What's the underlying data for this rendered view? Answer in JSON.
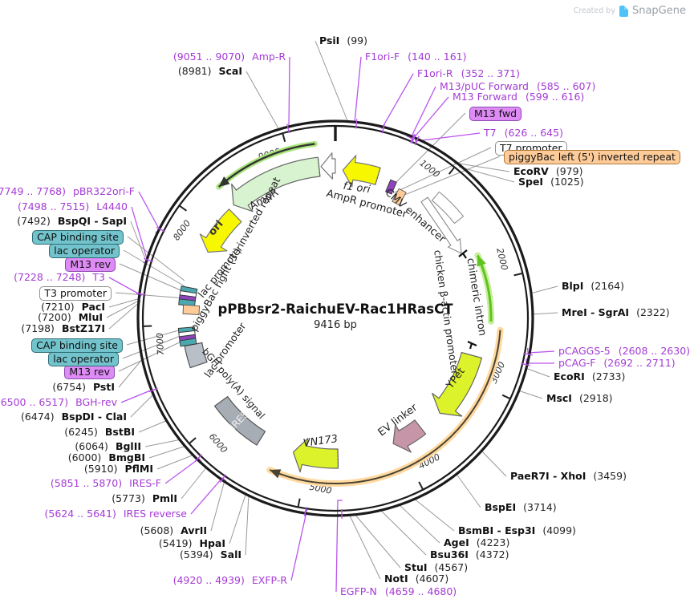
{
  "watermark": {
    "created_by": "Created by",
    "brand": "SnapGene"
  },
  "plasmid": {
    "name": "pPBbsr2-RaichuEV-Rac1HRasCT",
    "size": "9416 bp"
  },
  "ticks": [
    "1000",
    "2000",
    "3000",
    "4000",
    "5000",
    "6000",
    "7000",
    "8000",
    "9000"
  ],
  "feature_labels": {
    "f1ori": "f1 ori",
    "ampr_prom": "AmpR promoter",
    "ampr": "AmpR",
    "cmv": "CMV enhancer",
    "actin": "chicken β-actin promoter",
    "intron": "chimeric intron",
    "ypet": "YPet",
    "ev": "EV linker",
    "vn173": "VN173",
    "ires": "IRES",
    "bgh": "bGH poly(A) signal",
    "lac_a": "lac promoter",
    "lac_b": "lac promoter",
    "pb_right": "piggyBac right (3') inverted repeat",
    "ori": "ori"
  },
  "callouts": [
    {
      "id": "psiI",
      "kind": "enzyme",
      "name": "PsiI",
      "pos": "(99)"
    },
    {
      "id": "ampRp",
      "kind": "primer",
      "name": "Amp-R",
      "pos": "(9051 .. 9070)"
    },
    {
      "id": "scaI",
      "kind": "enzyme",
      "name": "ScaI",
      "pos": "(8981)"
    },
    {
      "id": "f1oriF",
      "kind": "primer",
      "name": "F1ori-F",
      "pos": "(140 .. 161)"
    },
    {
      "id": "f1oriR",
      "kind": "primer",
      "name": "F1ori-R",
      "pos": "(352 .. 371)"
    },
    {
      "id": "m13puc",
      "kind": "primer",
      "name": "M13/pUC Forward",
      "pos": "(585 .. 607)"
    },
    {
      "id": "m13fwdP",
      "kind": "primer",
      "name": "M13 Forward",
      "pos": "(599 .. 616)"
    },
    {
      "id": "m13fwdBox",
      "kind": "box",
      "box": "purple",
      "name": "M13 fwd"
    },
    {
      "id": "t7",
      "kind": "primer",
      "name": "T7",
      "pos": "(626 .. 645)"
    },
    {
      "id": "t7prom",
      "kind": "box",
      "box": "white",
      "name": "T7 promoter"
    },
    {
      "id": "pbLeft",
      "kind": "box",
      "box": "orange",
      "name": "piggyBac left (5') inverted repeat"
    },
    {
      "id": "ecoRV",
      "kind": "enzyme",
      "name": "EcoRV",
      "pos": "(979)"
    },
    {
      "id": "speI",
      "kind": "enzyme",
      "name": "SpeI",
      "pos": "(1025)"
    },
    {
      "id": "blpI",
      "kind": "enzyme",
      "name": "BlpI",
      "pos": "(2164)"
    },
    {
      "id": "mreI",
      "kind": "enzyme",
      "name": "MreI - SgrAI",
      "pos": "(2322)"
    },
    {
      "id": "pcaggs5",
      "kind": "primer",
      "name": "pCAGGS-5",
      "pos": "(2608 .. 2630)"
    },
    {
      "id": "pcagF",
      "kind": "primer",
      "name": "pCAG-F",
      "pos": "(2692 .. 2711)"
    },
    {
      "id": "ecoRI",
      "kind": "enzyme",
      "name": "EcoRI",
      "pos": "(2733)"
    },
    {
      "id": "mscI",
      "kind": "enzyme",
      "name": "MscI",
      "pos": "(2918)"
    },
    {
      "id": "paeR7I",
      "kind": "enzyme",
      "name": "PaeR7I - XhoI",
      "pos": "(3459)"
    },
    {
      "id": "bspEI",
      "kind": "enzyme",
      "name": "BspEI",
      "pos": "(3714)"
    },
    {
      "id": "bsmBI",
      "kind": "enzyme",
      "name": "BsmBI - Esp3I",
      "pos": "(4099)"
    },
    {
      "id": "ageI",
      "kind": "enzyme",
      "name": "AgeI",
      "pos": "(4223)"
    },
    {
      "id": "bsu36I",
      "kind": "enzyme",
      "name": "Bsu36I",
      "pos": "(4372)"
    },
    {
      "id": "stuI",
      "kind": "enzyme",
      "name": "StuI",
      "pos": "(4567)"
    },
    {
      "id": "notI",
      "kind": "enzyme",
      "name": "NotI",
      "pos": "(4607)"
    },
    {
      "id": "egfpN",
      "kind": "primer",
      "name": "EGFP-N",
      "pos": "(4659 .. 4680)"
    },
    {
      "id": "exfpR",
      "kind": "primer",
      "name": "EXFP-R",
      "pos": "(4920 .. 4939)"
    },
    {
      "id": "salI",
      "kind": "enzyme",
      "name": "SalI",
      "pos": "(5394)"
    },
    {
      "id": "hpaI",
      "kind": "enzyme",
      "name": "HpaI",
      "pos": "(5419)"
    },
    {
      "id": "avrII",
      "kind": "enzyme",
      "name": "AvrII",
      "pos": "(5608)"
    },
    {
      "id": "iresRev",
      "kind": "primer",
      "name": "IRES reverse",
      "pos": "(5624 .. 5641)"
    },
    {
      "id": "pmlI",
      "kind": "enzyme",
      "name": "PmlI",
      "pos": "(5773)"
    },
    {
      "id": "iresF",
      "kind": "primer",
      "name": "IRES-F",
      "pos": "(5851 .. 5870)"
    },
    {
      "id": "pflMI",
      "kind": "enzyme",
      "name": "PflMI",
      "pos": "(5910)"
    },
    {
      "id": "bmgBI",
      "kind": "enzyme",
      "name": "BmgBI",
      "pos": "(6000)"
    },
    {
      "id": "bglII",
      "kind": "enzyme",
      "name": "BglII",
      "pos": "(6064)"
    },
    {
      "id": "bstBI",
      "kind": "enzyme",
      "name": "BstBI",
      "pos": "(6245)"
    },
    {
      "id": "bspDI",
      "kind": "enzyme",
      "name": "BspDI - ClaI",
      "pos": "(6474)"
    },
    {
      "id": "bghRev",
      "kind": "primer",
      "name": "BGH-rev",
      "pos": "(6500 .. 6517)"
    },
    {
      "id": "pstI",
      "kind": "enzyme",
      "name": "PstI",
      "pos": "(6754)"
    },
    {
      "id": "m13revB",
      "kind": "box",
      "box": "purple",
      "name": "M13 rev"
    },
    {
      "id": "lacOpB",
      "kind": "box",
      "box": "teal",
      "name": "lac operator"
    },
    {
      "id": "capB",
      "kind": "box",
      "box": "teal",
      "name": "CAP binding site"
    },
    {
      "id": "bstZ17I",
      "kind": "enzyme",
      "name": "BstZ17I",
      "pos": "(7198)"
    },
    {
      "id": "mluI",
      "kind": "enzyme",
      "name": "MluI",
      "pos": "(7200)"
    },
    {
      "id": "pacI",
      "kind": "enzyme",
      "name": "PacI",
      "pos": "(7210)"
    },
    {
      "id": "t3prom",
      "kind": "box",
      "box": "white",
      "name": "T3 promoter"
    },
    {
      "id": "t3",
      "kind": "primer",
      "name": "T3",
      "pos": "(7228 .. 7248)"
    },
    {
      "id": "m13revA",
      "kind": "box",
      "box": "purple",
      "name": "M13 rev"
    },
    {
      "id": "lacOpA",
      "kind": "box",
      "box": "teal",
      "name": "lac operator"
    },
    {
      "id": "capA",
      "kind": "box",
      "box": "teal",
      "name": "CAP binding site"
    },
    {
      "id": "bspQI",
      "kind": "enzyme",
      "name": "BspQI - SapI",
      "pos": "(7492)"
    },
    {
      "id": "l4440",
      "kind": "primer",
      "name": "L4440",
      "pos": "(7498 .. 7515)"
    },
    {
      "id": "pbr322",
      "kind": "primer",
      "name": "pBR322ori-F",
      "pos": "(7749 .. 7768)"
    }
  ],
  "colors": {
    "primer_text": "#A43BD5",
    "primer_line": "#BB55EE",
    "enzyme_text": "#111111",
    "leader_gray": "#999999",
    "ring": "#1b1b1b",
    "yellow": "#F7F700",
    "chartreuse": "#DCF22A",
    "ampr_green": "#D8F3CF",
    "pink": "#C795A8",
    "feature_gray": "#A6ADB5",
    "orange": "#FFCC99",
    "orange_halo": "#FFD9A0",
    "intron_green": "#5FC31E",
    "intron_halo": "#C9EEA0",
    "purple_glyph": "#8E44BB",
    "teal_glyph": "#4BA7B0"
  }
}
